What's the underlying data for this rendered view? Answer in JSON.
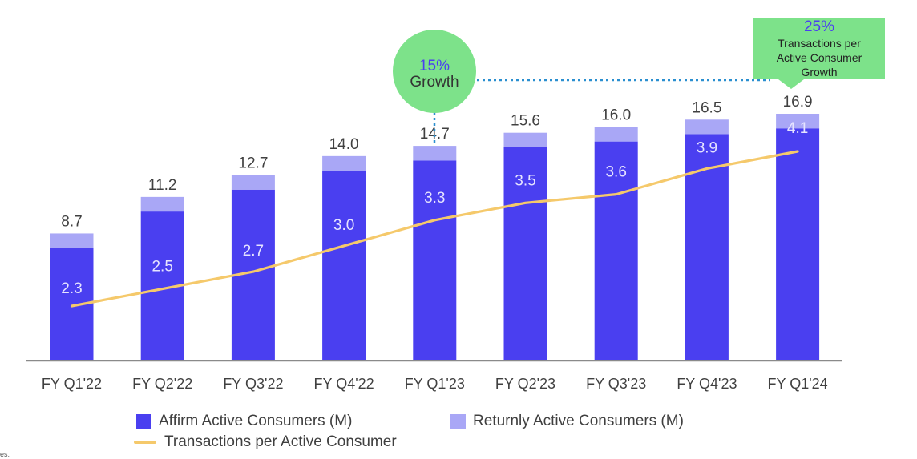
{
  "chart_data": {
    "type": "bar",
    "categories": [
      "FY Q1'22",
      "FY Q2'22",
      "FY Q3'22",
      "FY Q4'22",
      "FY Q1'23",
      "FY Q2'23",
      "FY Q3'23",
      "FY Q4'23",
      "FY Q1'24"
    ],
    "series": [
      {
        "name": "Affirm Active Consumers (M)",
        "type": "bar-stacked",
        "color": "#4a3ff0",
        "values": [
          7.7,
          10.2,
          11.7,
          13.0,
          13.7,
          14.6,
          15.0,
          15.5,
          15.9
        ]
      },
      {
        "name": "Returnly Active Consumers (M)",
        "type": "bar-stacked",
        "color": "#a9a7f6",
        "values": [
          1.0,
          1.0,
          1.0,
          1.0,
          1.0,
          1.0,
          1.0,
          1.0,
          1.0
        ]
      },
      {
        "name": "Transactions per Active Consumer",
        "type": "line",
        "color": "#f5c96b",
        "values": [
          2.3,
          2.5,
          2.7,
          3.0,
          3.3,
          3.5,
          3.6,
          3.9,
          4.1
        ]
      }
    ],
    "totals": [
      "8.7",
      "11.2",
      "12.7",
      "14.0",
      "14.7",
      "15.6",
      "16.0",
      "16.5",
      "16.9"
    ],
    "line_labels": [
      "2.3",
      "2.5",
      "2.7",
      "3.0",
      "3.3",
      "3.5",
      "3.6",
      "3.9",
      "4.1"
    ],
    "ylim": [
      0,
      18
    ],
    "title": "",
    "xlabel": "",
    "ylabel": "",
    "grid": false,
    "legend_position": "bottom",
    "annotations": [
      {
        "id": "growth-bubble",
        "pct": "15%",
        "text": "Growth",
        "color": "#7de28a",
        "target": "FY Q1'23"
      },
      {
        "id": "transactions-callout",
        "pct": "25%",
        "lines": [
          "Transactions per",
          "Active Consumer",
          "Growth"
        ],
        "color": "#7de28a",
        "target": "FY Q1'24"
      }
    ]
  },
  "footnote": "es:"
}
